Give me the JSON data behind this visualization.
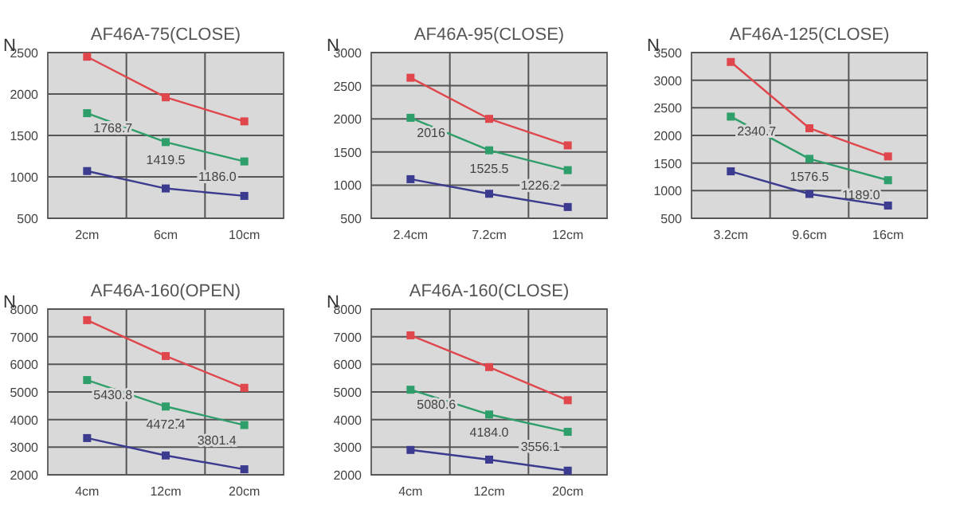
{
  "chart_data": [
    {
      "type": "line",
      "title": "AF46A-75(CLOSE)",
      "ylabel": "N",
      "categories": [
        "2cm",
        "6cm",
        "10cm"
      ],
      "ylim": [
        500,
        2500
      ],
      "yticks": [
        500,
        1000,
        1500,
        2000,
        2500
      ],
      "grid": true,
      "marker": "square",
      "series": [
        {
          "color": "#e0474c",
          "values": [
            2450,
            1960,
            1670
          ]
        },
        {
          "color": "#2e9e6a",
          "values": [
            1768.7,
            1419.5,
            1186.0
          ],
          "value_labels": [
            "1768.7",
            "1419.5",
            "1186.0"
          ]
        },
        {
          "color": "#3b3b8f",
          "values": [
            1070,
            860,
            770
          ]
        }
      ]
    },
    {
      "type": "line",
      "title": "AF46A-95(CLOSE)",
      "ylabel": "N",
      "categories": [
        "2.4cm",
        "7.2cm",
        "12cm"
      ],
      "ylim": [
        500,
        3000
      ],
      "yticks": [
        500,
        1000,
        1500,
        2000,
        2500,
        3000
      ],
      "grid": true,
      "marker": "square",
      "series": [
        {
          "color": "#e0474c",
          "values": [
            2620,
            2000,
            1600
          ]
        },
        {
          "color": "#2e9e6a",
          "values": [
            2016,
            1525.5,
            1226.2
          ],
          "value_labels": [
            "2016",
            "1525.5",
            "1226.2"
          ]
        },
        {
          "color": "#3b3b8f",
          "values": [
            1090,
            870,
            670
          ]
        }
      ]
    },
    {
      "type": "line",
      "title": "AF46A-125(CLOSE)",
      "ylabel": "N",
      "categories": [
        "3.2cm",
        "9.6cm",
        "16cm"
      ],
      "ylim": [
        500,
        3500
      ],
      "yticks": [
        500,
        1000,
        1500,
        2000,
        2500,
        3000,
        3500
      ],
      "grid": true,
      "marker": "square",
      "series": [
        {
          "color": "#e0474c",
          "values": [
            3330,
            2130,
            1620
          ]
        },
        {
          "color": "#2e9e6a",
          "values": [
            2340.7,
            1576.5,
            1189.0
          ],
          "value_labels": [
            "2340.7",
            "1576.5",
            "1189.0"
          ]
        },
        {
          "color": "#3b3b8f",
          "values": [
            1350,
            940,
            730
          ]
        }
      ]
    },
    {
      "type": "line",
      "title": "AF46A-160(OPEN)",
      "ylabel": "N",
      "categories": [
        "4cm",
        "12cm",
        "20cm"
      ],
      "ylim": [
        2000,
        8000
      ],
      "yticks": [
        2000,
        3000,
        4000,
        5000,
        6000,
        7000,
        8000
      ],
      "grid": true,
      "marker": "square",
      "series": [
        {
          "color": "#e0474c",
          "values": [
            7600,
            6300,
            5150
          ]
        },
        {
          "color": "#2e9e6a",
          "values": [
            5430.8,
            4472.4,
            3801.4
          ],
          "value_labels": [
            "5430.8",
            "4472.4",
            "3801.4"
          ]
        },
        {
          "color": "#3b3b8f",
          "values": [
            3330,
            2700,
            2200
          ]
        }
      ]
    },
    {
      "type": "line",
      "title": "AF46A-160(CLOSE)",
      "ylabel": "N",
      "categories": [
        "4cm",
        "12cm",
        "20cm"
      ],
      "ylim": [
        2000,
        8000
      ],
      "yticks": [
        2000,
        3000,
        4000,
        5000,
        6000,
        7000,
        8000
      ],
      "grid": true,
      "marker": "square",
      "series": [
        {
          "color": "#e0474c",
          "values": [
            7050,
            5900,
            4700
          ]
        },
        {
          "color": "#2e9e6a",
          "values": [
            5080.6,
            4184.0,
            3556.1
          ],
          "value_labels": [
            "5080.6",
            "4184.0",
            "3556.1"
          ]
        },
        {
          "color": "#3b3b8f",
          "values": [
            2900,
            2550,
            2150
          ]
        }
      ]
    }
  ]
}
